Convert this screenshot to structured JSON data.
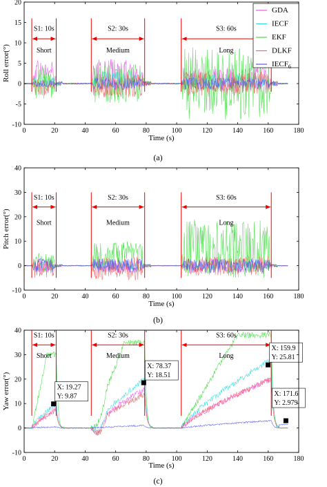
{
  "chart_data": [
    {
      "type": "line",
      "panel_label": "(a)",
      "xlabel": "Time (s)",
      "ylabel": "Roll error(°)",
      "xlim": [
        0,
        180
      ],
      "ylim": [
        -10,
        20
      ],
      "xticks": [
        0,
        20,
        40,
        60,
        80,
        100,
        120,
        140,
        160,
        180
      ],
      "yticks": [
        -10,
        -5,
        0,
        5,
        10,
        15,
        20
      ],
      "legend": {
        "placement": "top-right",
        "entries": [
          {
            "label": "GDA",
            "color": "#ee55ee"
          },
          {
            "label": "IECF",
            "color": "#33dddd"
          },
          {
            "label": "EKF",
            "color": "#44dd44"
          },
          {
            "label": "DLKF",
            "color": "#ee6666"
          },
          {
            "label": "IECF",
            "sub": "6",
            "color": "#5555ee"
          }
        ]
      },
      "segments": [
        {
          "label": "S1: 10s",
          "duration": "Short",
          "start": 5,
          "end": 21
        },
        {
          "label": "S2: 30s",
          "duration": "Medium",
          "start": 44,
          "end": 79
        },
        {
          "label": "S3: 60s",
          "duration": "Long",
          "start": 103,
          "end": 162
        }
      ],
      "segment_marker_y": [
        -2,
        16
      ],
      "segment_arrow_y": 11,
      "segment_label_y": 13,
      "segment_duration_y": 9,
      "series": [
        {
          "name": "GDA",
          "amplitude": [
            3,
            4,
            3
          ],
          "bias": [
            3,
            2,
            1
          ]
        },
        {
          "name": "IECF",
          "amplitude": [
            1.5,
            2,
            2
          ],
          "bias": [
            0.5,
            1,
            0.5
          ]
        },
        {
          "name": "EKF",
          "amplitude": [
            4,
            5,
            9
          ],
          "bias": [
            0,
            0,
            0
          ]
        },
        {
          "name": "DLKF",
          "amplitude": [
            2,
            3,
            3
          ],
          "bias": [
            -1,
            -0.5,
            0
          ]
        },
        {
          "name": "IECF6",
          "amplitude": [
            1,
            1.5,
            1.5
          ],
          "bias": [
            0,
            0,
            0
          ]
        }
      ]
    },
    {
      "type": "line",
      "panel_label": "(b)",
      "xlabel": "Time (s)",
      "ylabel": "Pitch error(°)",
      "xlim": [
        0,
        180
      ],
      "ylim": [
        -10,
        40
      ],
      "xticks": [
        0,
        20,
        40,
        60,
        80,
        100,
        120,
        140,
        160,
        180
      ],
      "yticks": [
        -10,
        0,
        10,
        20,
        30,
        40
      ],
      "segments": [
        {
          "label": "S1: 10s",
          "duration": "Short",
          "start": 5,
          "end": 21
        },
        {
          "label": "S2: 30s",
          "duration": "Medium",
          "start": 44,
          "end": 79
        },
        {
          "label": "S3: 60s",
          "duration": "Long",
          "start": 103,
          "end": 162
        }
      ],
      "segment_marker_y": [
        -5,
        30
      ],
      "segment_arrow_y": 24,
      "segment_label_y": 27,
      "segment_duration_y": 19,
      "series": [
        {
          "name": "GDA",
          "amplitude": [
            3,
            3,
            3
          ],
          "bias": [
            0,
            0,
            0
          ]
        },
        {
          "name": "IECF",
          "amplitude": [
            2,
            2,
            2
          ],
          "bias": [
            0,
            0,
            0
          ]
        },
        {
          "name": "EKF",
          "amplitude": [
            4,
            6,
            12
          ],
          "bias": [
            1,
            4,
            7
          ]
        },
        {
          "name": "DLKF",
          "amplitude": [
            4,
            5,
            4
          ],
          "bias": [
            -1,
            -1,
            0
          ]
        },
        {
          "name": "IECF6",
          "amplitude": [
            3,
            3,
            3
          ],
          "bias": [
            0,
            0,
            0
          ]
        }
      ]
    },
    {
      "type": "line",
      "panel_label": "(c)",
      "xlabel": "Time (s)",
      "ylabel": "Yaw error(°)",
      "xlim": [
        0,
        180
      ],
      "ylim": [
        -10,
        40
      ],
      "xticks": [
        0,
        20,
        40,
        60,
        80,
        100,
        120,
        140,
        160,
        180
      ],
      "yticks": [
        -10,
        0,
        10,
        20,
        30,
        40
      ],
      "segments": [
        {
          "label": "S1: 10s",
          "duration": "Short",
          "start": 5,
          "end": 21
        },
        {
          "label": "S2: 30s",
          "duration": "Medium",
          "start": 44,
          "end": 79
        },
        {
          "label": "S3: 60s",
          "duration": "Long",
          "start": 103,
          "end": 162
        }
      ],
      "segment_marker_y": [
        5,
        40
      ],
      "segment_arrow_y": 34,
      "segment_label_y": 37,
      "segment_duration_y": 31,
      "series": [
        {
          "name": "GDA",
          "peaks": [
            8,
            16,
            20
          ]
        },
        {
          "name": "IECF",
          "peaks": [
            10,
            20,
            28
          ]
        },
        {
          "name": "EKF",
          "peaks": [
            30,
            35,
            38
          ]
        },
        {
          "name": "DLKF",
          "peaks": [
            7,
            14,
            20
          ]
        },
        {
          "name": "IECF6",
          "peaks": [
            0.5,
            1,
            3
          ]
        }
      ],
      "datatips": [
        {
          "x": 19.27,
          "y": 9.87,
          "x_text": "X: 19.27",
          "y_text": "Y: 9.87"
        },
        {
          "x": 78.37,
          "y": 18.51,
          "x_text": "X: 78.37",
          "y_text": "Y: 18.51"
        },
        {
          "x": 159.9,
          "y": 25.81,
          "x_text": "X: 159.9",
          "y_text": "Y: 25.81"
        },
        {
          "x": 171.6,
          "y": 2.979,
          "x_text": "X: 171.6",
          "y_text": "Y: 2.979"
        }
      ]
    }
  ]
}
